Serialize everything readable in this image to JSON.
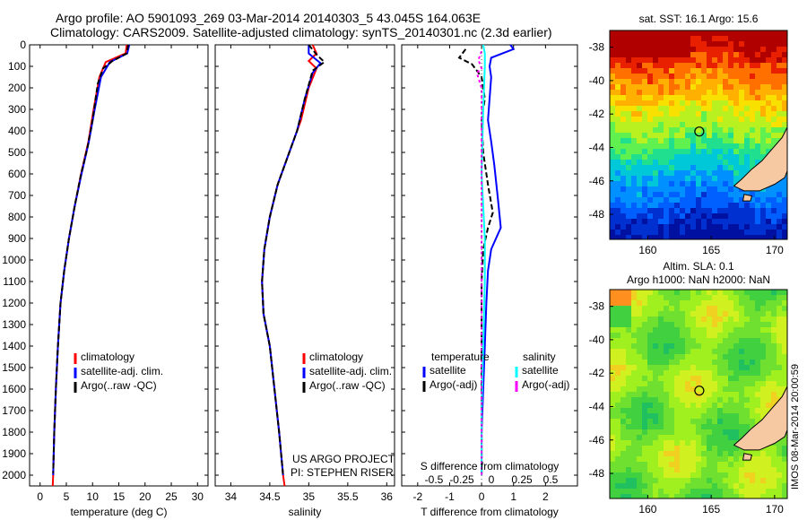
{
  "header": {
    "line1": "Argo profile: AO 5901093_269 03-Mar-2014 20140303_5 43.045S 164.063E",
    "line2": "Climatology: CARS2009. Satellite-adjusted climatology: synTS_20140301.nc (2.3d earlier)"
  },
  "colors": {
    "climatology": "#ff0000",
    "satellite": "#0000ff",
    "argo": "#000000",
    "argo_salinity_adj": "#ff00ff",
    "satellite_salinity": "#00ffff"
  },
  "chart_data": [
    {
      "type": "line",
      "xlabel": "temperature (deg C)",
      "ylabel": "",
      "xlim": [
        -2,
        32
      ],
      "ylim": [
        2050,
        0
      ],
      "x_ticks": [
        "0",
        "5",
        "10",
        "15",
        "20",
        "25",
        "30"
      ],
      "y_ticks": [
        "0",
        "100",
        "200",
        "300",
        "400",
        "500",
        "600",
        "700",
        "800",
        "900",
        "1000",
        "1100",
        "1200",
        "1300",
        "1400",
        "1500",
        "1600",
        "1700",
        "1800",
        "1900",
        "2000"
      ],
      "legend": [
        "climatology",
        "satellite-adj. clim.",
        "Argo(..raw -QC)"
      ],
      "series": [
        {
          "name": "climatology",
          "color": "#ff0000",
          "points": [
            [
              16.5,
              0
            ],
            [
              16.3,
              40
            ],
            [
              12.5,
              80
            ],
            [
              11.3,
              150
            ],
            [
              10.2,
              300
            ],
            [
              9.2,
              450
            ],
            [
              7.8,
              600
            ],
            [
              6.6,
              750
            ],
            [
              5.5,
              900
            ],
            [
              4.6,
              1050
            ],
            [
              3.9,
              1200
            ],
            [
              3.4,
              1400
            ],
            [
              3.0,
              1600
            ],
            [
              2.7,
              1800
            ],
            [
              2.5,
              2000
            ],
            [
              2.4,
              2050
            ]
          ]
        },
        {
          "name": "satellite-adj. clim.",
          "color": "#0000ff",
          "points": [
            [
              17.0,
              0
            ],
            [
              16.6,
              40
            ],
            [
              13.3,
              80
            ],
            [
              11.6,
              150
            ],
            [
              10.4,
              300
            ],
            [
              9.3,
              450
            ],
            [
              7.9,
              600
            ],
            [
              6.6,
              750
            ],
            [
              5.5,
              900
            ],
            [
              4.6,
              1050
            ],
            [
              3.9,
              1200
            ],
            [
              3.4,
              1400
            ],
            [
              3.0,
              1600
            ],
            [
              2.7,
              1800
            ],
            [
              2.5,
              2000
            ]
          ]
        },
        {
          "name": "Argo(..raw -QC)",
          "color": "#000000",
          "points": [
            [
              16.8,
              0
            ],
            [
              16.5,
              40
            ],
            [
              13.8,
              75
            ],
            [
              12.0,
              110
            ],
            [
              11.0,
              180
            ],
            [
              10.0,
              350
            ],
            [
              9.0,
              480
            ],
            [
              7.8,
              600
            ],
            [
              6.6,
              750
            ],
            [
              5.5,
              900
            ],
            [
              4.6,
              1050
            ],
            [
              3.9,
              1200
            ],
            [
              3.4,
              1400
            ],
            [
              3.0,
              1600
            ],
            [
              2.7,
              1800
            ],
            [
              2.5,
              1990
            ]
          ]
        }
      ]
    },
    {
      "type": "line",
      "xlabel": "salinity",
      "xlim": [
        33.8,
        36.1
      ],
      "ylim": [
        2050,
        0
      ],
      "x_ticks": [
        "34",
        "34.5",
        "35",
        "35.5",
        "36"
      ],
      "legend": [
        "climatology",
        "satellite-adj. clim.",
        "Argo(..raw -QC)"
      ],
      "annotations": [
        "US ARGO PROJECT",
        "PI: STEPHEN RISER"
      ],
      "series": [
        {
          "name": "climatology",
          "color": "#ff0000",
          "points": [
            [
              35.05,
              0
            ],
            [
              35.1,
              40
            ],
            [
              35.0,
              75
            ],
            [
              35.1,
              110
            ],
            [
              35.0,
              200
            ],
            [
              34.9,
              350
            ],
            [
              34.75,
              500
            ],
            [
              34.6,
              650
            ],
            [
              34.5,
              800
            ],
            [
              34.43,
              950
            ],
            [
              34.4,
              1100
            ],
            [
              34.42,
              1250
            ],
            [
              34.5,
              1400
            ],
            [
              34.56,
              1600
            ],
            [
              34.62,
              1800
            ],
            [
              34.67,
              2000
            ],
            [
              34.69,
              2050
            ]
          ]
        },
        {
          "name": "satellite-adj. clim.",
          "color": "#0000ff",
          "points": [
            [
              35.0,
              0
            ],
            [
              35.0,
              40
            ],
            [
              35.15,
              85
            ],
            [
              35.05,
              130
            ],
            [
              34.95,
              250
            ],
            [
              34.85,
              400
            ],
            [
              34.75,
              500
            ],
            [
              34.6,
              650
            ],
            [
              34.5,
              800
            ],
            [
              34.43,
              950
            ],
            [
              34.4,
              1100
            ],
            [
              34.42,
              1250
            ],
            [
              34.5,
              1400
            ],
            [
              34.56,
              1600
            ],
            [
              34.62,
              1800
            ],
            [
              34.67,
              2000
            ]
          ]
        },
        {
          "name": "Argo(..raw -QC)",
          "color": "#000000",
          "points": [
            [
              35.0,
              0
            ],
            [
              35.1,
              45
            ],
            [
              35.2,
              80
            ],
            [
              35.05,
              120
            ],
            [
              34.95,
              250
            ],
            [
              34.85,
              400
            ],
            [
              34.75,
              500
            ],
            [
              34.6,
              650
            ],
            [
              34.5,
              800
            ],
            [
              34.43,
              950
            ],
            [
              34.4,
              1100
            ],
            [
              34.42,
              1250
            ],
            [
              34.5,
              1400
            ],
            [
              34.56,
              1600
            ],
            [
              34.62,
              1800
            ],
            [
              34.67,
              2000
            ]
          ]
        }
      ]
    },
    {
      "type": "line",
      "xlabel": "T difference from climatology",
      "secondary_xlabel": "S difference from climatology",
      "xlim": [
        -2.5,
        3.0
      ],
      "ylim": [
        2050,
        0
      ],
      "x_ticks": [
        "-2",
        "-1",
        "0",
        "1",
        "2"
      ],
      "secondary_x_ticks": [
        "-0.5",
        "-0.25",
        "0",
        "0.25",
        "0.5"
      ],
      "legend_temperature": {
        "title": "temperature",
        "items": [
          "satellite",
          "Argo(-adj)"
        ]
      },
      "legend_salinity": {
        "title": "salinity",
        "items": [
          "satellite",
          "Argo(-adj)"
        ]
      },
      "series": [
        {
          "name": "satellite",
          "color": "#0000ff",
          "points": [
            [
              0.9,
              0
            ],
            [
              1.0,
              20
            ],
            [
              0.3,
              60
            ],
            [
              0.25,
              100
            ],
            [
              0.3,
              150
            ],
            [
              0.25,
              250
            ],
            [
              0.2,
              350
            ],
            [
              0.3,
              450
            ],
            [
              0.4,
              560
            ],
            [
              0.5,
              700
            ],
            [
              0.6,
              850
            ],
            [
              0.3,
              950
            ],
            [
              0.2,
              1050
            ],
            [
              0.15,
              1200
            ],
            [
              0.1,
              1400
            ],
            [
              0.05,
              1600
            ],
            [
              0.0,
              1800
            ],
            [
              0.0,
              2000
            ]
          ]
        },
        {
          "name": "Argo(-adj)",
          "color": "#000000",
          "points": [
            [
              -0.5,
              20
            ],
            [
              -0.7,
              60
            ],
            [
              -0.3,
              90
            ],
            [
              0.0,
              150
            ],
            [
              0.1,
              250
            ],
            [
              0.0,
              350
            ],
            [
              0.05,
              500
            ],
            [
              0.2,
              650
            ],
            [
              0.35,
              780
            ],
            [
              0.2,
              850
            ],
            [
              0.05,
              950
            ],
            [
              0.0,
              1100
            ],
            [
              0.0,
              1400
            ],
            [
              0.0,
              1800
            ],
            [
              0.0,
              1990
            ]
          ]
        },
        {
          "name": "satellite",
          "color": "#00ffff",
          "points": [
            [
              0.05,
              0
            ],
            [
              0.1,
              40
            ],
            [
              0.1,
              100
            ],
            [
              0.05,
              300
            ],
            [
              0.0,
              600
            ],
            [
              0.1,
              900
            ],
            [
              0.1,
              1100
            ],
            [
              0.05,
              1400
            ],
            [
              0.0,
              1700
            ],
            [
              0.0,
              2000
            ]
          ]
        },
        {
          "name": "Argo(-adj)",
          "color": "#ff00ff",
          "points": [
            [
              0.0,
              30
            ],
            [
              -0.1,
              70
            ],
            [
              0.0,
              110
            ],
            [
              -0.15,
              130
            ],
            [
              0.0,
              200
            ],
            [
              0.0,
              2000
            ]
          ]
        }
      ]
    },
    {
      "type": "heatmap",
      "title": "sat. SST: 16.1  Argo: 15.6",
      "xlim": [
        157,
        171
      ],
      "ylim": [
        -49.5,
        -37
      ],
      "x_ticks": [
        "160",
        "165",
        "170"
      ],
      "y_ticks": [
        "-38",
        "-40",
        "-42",
        "-44",
        "-46",
        "-48"
      ],
      "marker": {
        "lon": 164.063,
        "lat": -43.045
      }
    },
    {
      "type": "heatmap",
      "title": "Altim. SLA: 0.1",
      "subtitle": "Argo h1000: NaN  h2000: NaN",
      "xlim": [
        157,
        171
      ],
      "ylim": [
        -49.5,
        -37
      ],
      "x_ticks": [
        "160",
        "165",
        "170"
      ],
      "y_ticks": [
        "-38",
        "-40",
        "-42",
        "-44",
        "-46",
        "-48"
      ],
      "marker": {
        "lon": 164.063,
        "lat": -43.045
      },
      "side_note": "IMOS 08-Mar-2014 20:00:59"
    }
  ]
}
